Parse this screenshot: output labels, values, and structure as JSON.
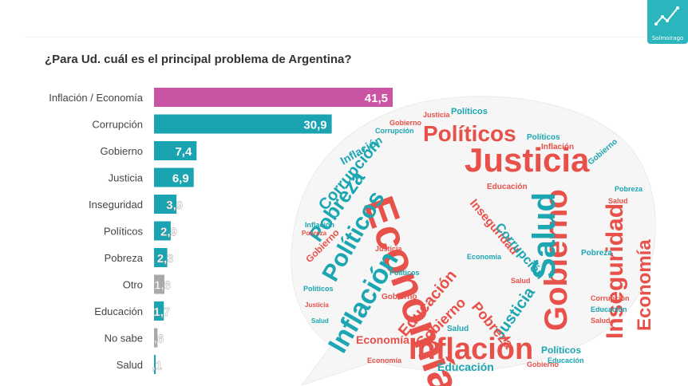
{
  "header": {
    "title": "¿Para Ud. cuál es el principal problema de Argentina?",
    "logo_text": "Solmoirago"
  },
  "colors": {
    "highlight": "#c954a4",
    "primary": "#1aa3b0",
    "muted": "#a9a9a9",
    "cloud_red": "#e8504a",
    "cloud_teal": "#1ba6b2"
  },
  "chart_data": {
    "type": "bar",
    "orientation": "horizontal",
    "title": "¿Para Ud. cuál es el principal problema de Argentina?",
    "categories": [
      "Inflación / Economía",
      "Corrupción",
      "Gobierno",
      "Justicia",
      "Inseguridad",
      "Políticos",
      "Pobreza",
      "Otro",
      "Educación",
      "No sabe",
      "Salud"
    ],
    "values": [
      41.5,
      30.9,
      7.4,
      6.9,
      3.9,
      2.9,
      2.3,
      1.8,
      1.7,
      0.6,
      0.1
    ],
    "value_labels": [
      "41,5",
      "30,9",
      "7,4",
      "6,9",
      "3,9",
      "2,9",
      "2,3",
      "1,8",
      "1,7",
      ",6",
      ",1"
    ],
    "bar_colors": [
      "#c954a4",
      "#1aa3b0",
      "#1aa3b0",
      "#1aa3b0",
      "#1aa3b0",
      "#1aa3b0",
      "#1aa3b0",
      "#a9a9a9",
      "#1aa3b0",
      "#a9a9a9",
      "#1aa3b0"
    ],
    "xlim": [
      0,
      41.5
    ],
    "grid": false,
    "legend": "none"
  }
}
